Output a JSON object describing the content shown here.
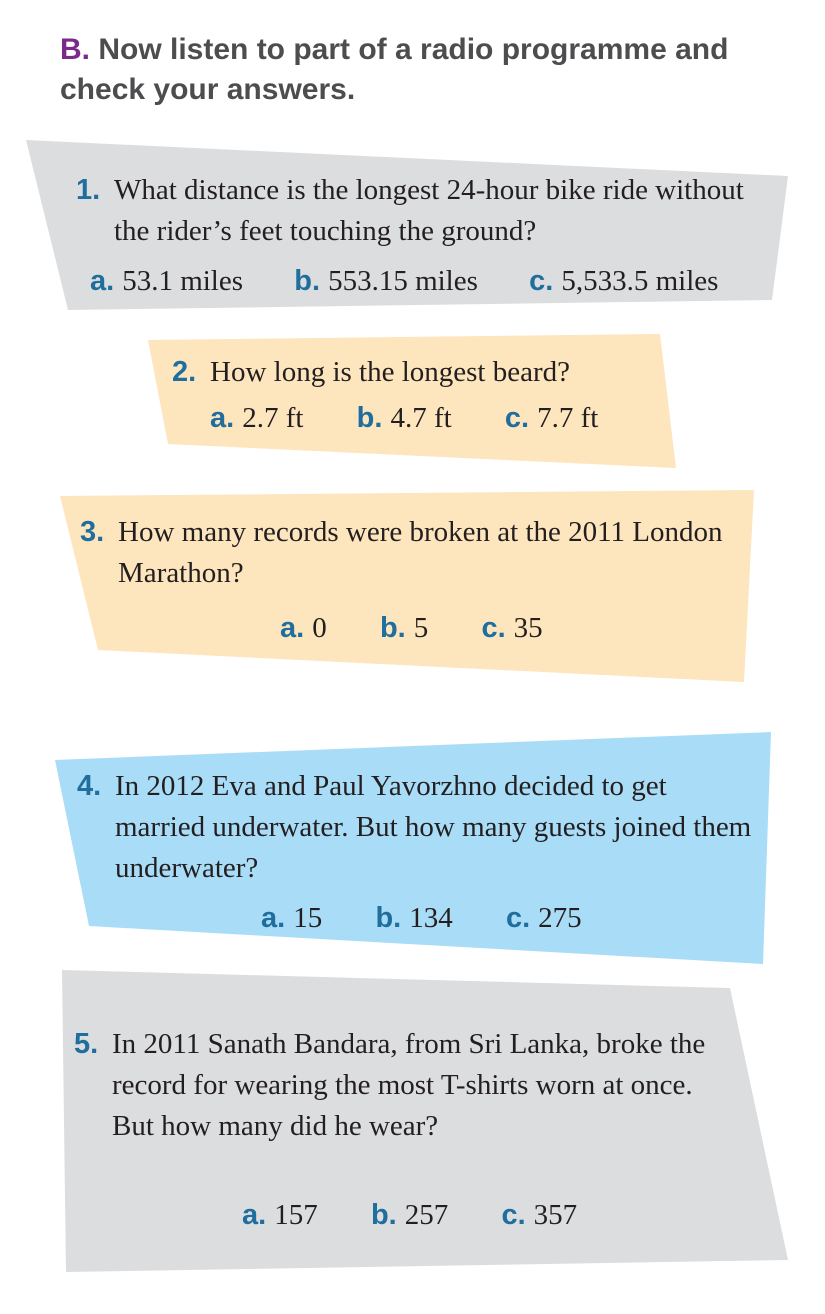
{
  "header": {
    "letter": "B.",
    "text": "Now listen to part of a radio programme and check your answers."
  },
  "questions": [
    {
      "number": "1.",
      "text": "What distance is the longest 24-hour bike ride without the rider’s feet touching the ground?",
      "answers": [
        {
          "label": "a.",
          "value": "53.1 miles"
        },
        {
          "label": "b.",
          "value": "553.15 miles"
        },
        {
          "label": "c.",
          "value": "5,533.5 miles"
        }
      ]
    },
    {
      "number": "2.",
      "text": "How long is the longest beard?",
      "answers": [
        {
          "label": "a.",
          "value": "2.7 ft"
        },
        {
          "label": "b.",
          "value": "4.7 ft"
        },
        {
          "label": "c.",
          "value": "7.7 ft"
        }
      ]
    },
    {
      "number": "3.",
      "text": "How many records were broken at the 2011 London Marathon?",
      "answers": [
        {
          "label": "a.",
          "value": "0"
        },
        {
          "label": "b.",
          "value": "5"
        },
        {
          "label": "c.",
          "value": "35"
        }
      ]
    },
    {
      "number": "4.",
      "text": "In 2012 Eva and Paul Yavorzhno decided to get married underwater. But how many guests joined them underwater?",
      "answers": [
        {
          "label": "a.",
          "value": "15"
        },
        {
          "label": "b.",
          "value": "134"
        },
        {
          "label": "c.",
          "value": "275"
        }
      ]
    },
    {
      "number": "5.",
      "text": "In 2011 Sanath Bandara, from Sri Lanka, broke the record for wearing the most T-shirts worn at once. But how many did he wear?",
      "answers": [
        {
          "label": "a.",
          "value": "157"
        },
        {
          "label": "b.",
          "value": "257"
        },
        {
          "label": "c.",
          "value": "357"
        }
      ]
    }
  ],
  "colors": {
    "gray": "#dcdddf",
    "peach": "#fde5bd",
    "blue": "#a9dcf7",
    "label_blue": "#1f6e9e",
    "header_letter": "#7b2a8c"
  }
}
